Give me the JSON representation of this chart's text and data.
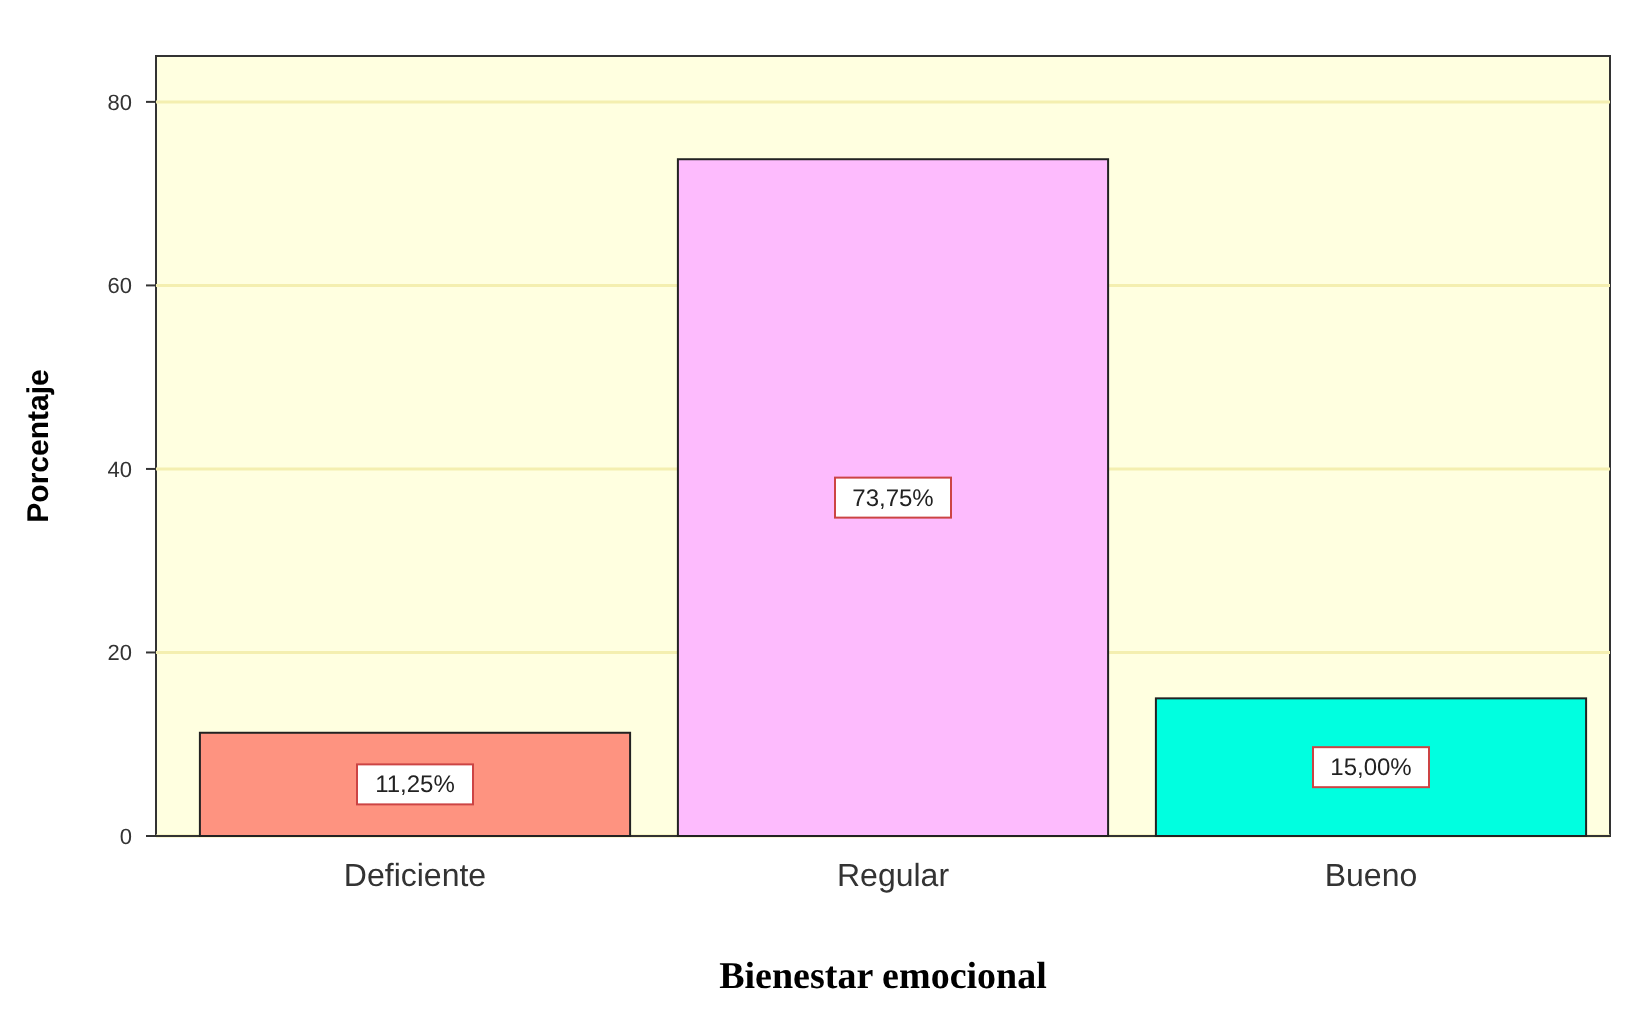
{
  "chart_data": {
    "type": "bar",
    "xlabel": "Bienestar emocional",
    "ylabel": "Porcentaje",
    "categories": [
      "Deficiente",
      "Regular",
      "Bueno"
    ],
    "values": [
      11.25,
      73.75,
      15.0
    ],
    "colors": [
      "#fe9380",
      "#fdbbfd",
      "#00ffe0"
    ],
    "value_labels": [
      "11,25%",
      "73,75%",
      "15,00%"
    ],
    "ylim": [
      0,
      85
    ],
    "yticks": [
      0,
      20,
      40,
      60,
      80
    ],
    "grid": "y"
  }
}
